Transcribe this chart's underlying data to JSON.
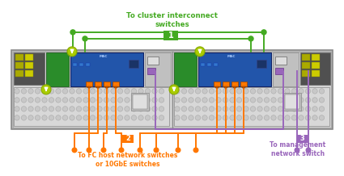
{
  "bg": "#ffffff",
  "chassis_bg": "#c8c8c8",
  "chassis_border": "#888888",
  "chassis_fill": "#d0d0d0",
  "node_bg": "#c0c0c0",
  "node_dark": "#a0a0a0",
  "node_light": "#e0e0e0",
  "card_blue": "#2255aa",
  "card_blue2": "#1a4488",
  "card_green": "#338844",
  "card_lightgray": "#b0b0b0",
  "port_area": "#d8d8d8",
  "port_circle": "#c0c0c0",
  "port_circle_dark": "#b0b0b0",
  "orange": "#ff7700",
  "orange_dark": "#dd5500",
  "green": "#44aa22",
  "green_dark": "#228800",
  "purple": "#9966bb",
  "text_green": "#44aa22",
  "text_orange": "#ff7700",
  "text_purple": "#9966bb",
  "lime": "#aacc00",
  "label1": "To cluster interconnect\nswitches",
  "label2": "To FC host network switches\nor 10GbE switches",
  "label3": "To management\nnetwork switch",
  "badge1": "1",
  "badge2": "2",
  "badge3": "3",
  "lw_cable": 1.4,
  "lw_chassis": 1.2
}
